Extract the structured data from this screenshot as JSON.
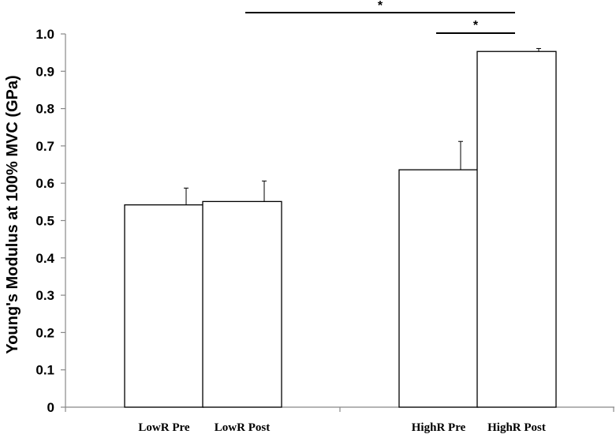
{
  "chart_data": {
    "type": "bar",
    "ylabel": "Young's Modulus at 100% MVC (GPa)",
    "xlabel": "",
    "ylim": [
      0,
      1.0
    ],
    "yticks": [
      "0",
      "0.1",
      "0.2",
      "0.3",
      "0.4",
      "0.5",
      "0.6",
      "0.7",
      "0.8",
      "0.9",
      "1.0"
    ],
    "grid": false,
    "groups": [
      "LowR",
      "HighR"
    ],
    "categories": [
      "LowR Pre",
      "LowR Post",
      "HighR Pre",
      "HighR Post"
    ],
    "values": [
      0.542,
      0.551,
      0.636,
      0.953
    ],
    "errors": [
      0.045,
      0.055,
      0.076,
      0.008
    ],
    "bar_fill": "#ffffff",
    "bar_stroke": "#000000",
    "significance": [
      {
        "from": "LowR Post",
        "to": "HighR Post",
        "label": "*"
      },
      {
        "from": "HighR Pre",
        "to": "HighR Post",
        "label": "*"
      }
    ]
  }
}
